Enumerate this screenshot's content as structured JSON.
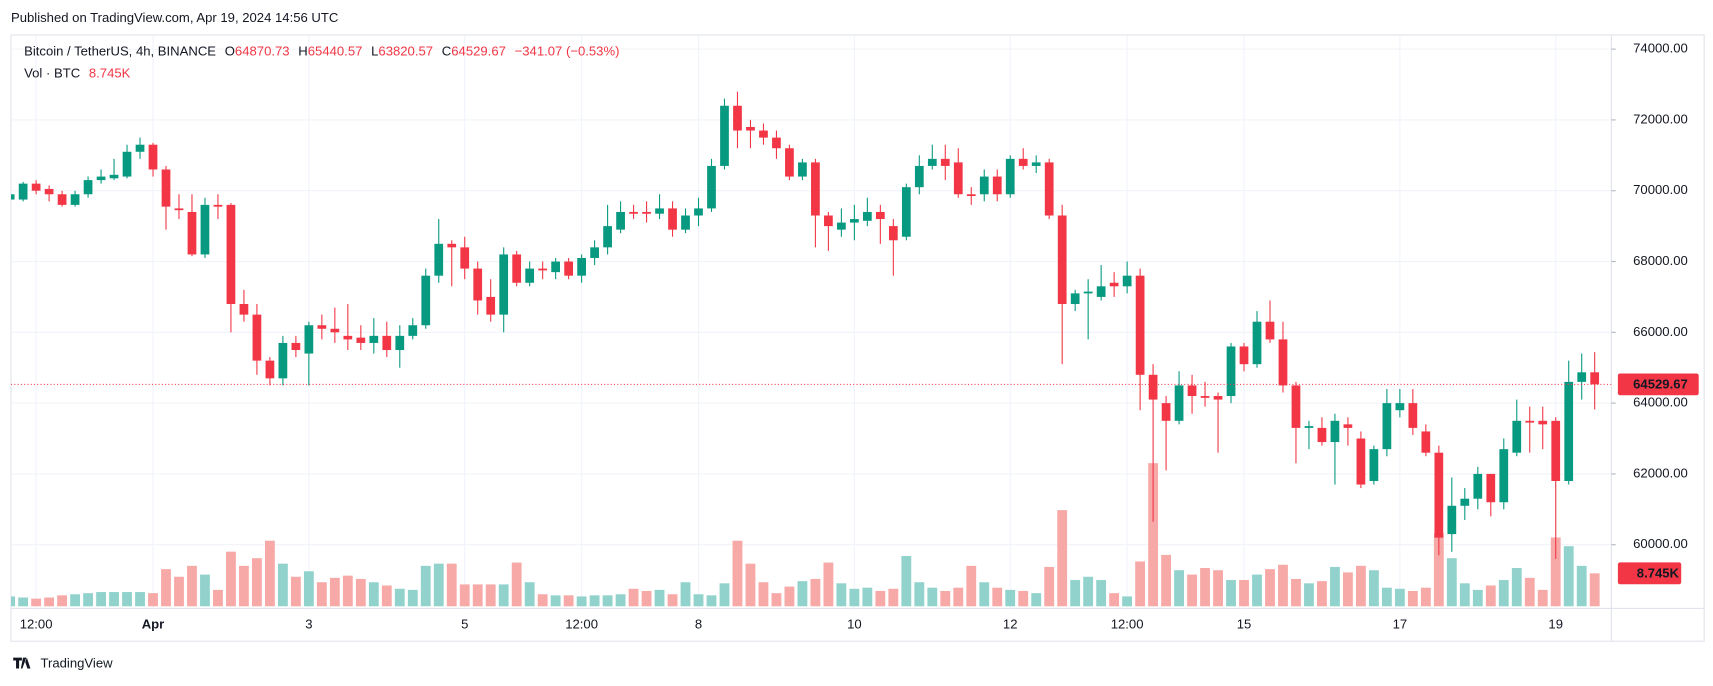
{
  "published": "Published on TradingView.com, Apr 19, 2024 14:56 UTC",
  "brand": "TradingView",
  "chart_data": {
    "type": "candlestick",
    "title": "Bitcoin / TetherUS, 4h, BINANCE",
    "ohlc_letters": [
      "O",
      "H",
      "L",
      "C"
    ],
    "change": "−341.07 (−0.53%)",
    "up_color": "#089981",
    "down_color": "#f23645",
    "volume_up_color": "#92d2cc",
    "volume_down_color": "#f7a9a7",
    "grid": true,
    "categories": [
      null,
      null,
      "12:00",
      null,
      null,
      null,
      null,
      null,
      null,
      null,
      null,
      "Apr",
      null,
      null,
      null,
      null,
      null,
      null,
      null,
      null,
      null,
      null,
      null,
      "3",
      null,
      null,
      null,
      null,
      null,
      null,
      null,
      null,
      null,
      null,
      null,
      "5",
      null,
      null,
      null,
      null,
      null,
      null,
      null,
      null,
      "12:00",
      null,
      null,
      null,
      null,
      null,
      null,
      null,
      null,
      "8",
      null,
      null,
      null,
      null,
      null,
      null,
      null,
      null,
      null,
      null,
      null,
      "10",
      null,
      null,
      null,
      null,
      null,
      null,
      null,
      null,
      null,
      null,
      null,
      "12",
      null,
      null,
      null,
      null,
      null,
      null,
      null,
      null,
      "12:00",
      null,
      null,
      null,
      null,
      null,
      null,
      null,
      null,
      "15",
      null,
      null,
      null,
      null,
      null,
      null,
      null,
      null,
      null,
      null,
      null,
      "17",
      null,
      null,
      null,
      null,
      null,
      null,
      null,
      null,
      null,
      null,
      null,
      "19",
      null,
      null,
      null
    ],
    "open": [
      69750,
      69750,
      70200,
      70050,
      69900,
      69600,
      69900,
      70300,
      70350,
      70400,
      71100,
      71300,
      70600,
      69500,
      69400,
      68200,
      69600,
      69600,
      66800,
      66500,
      65200,
      64700,
      65700,
      65400,
      66200,
      66100,
      65900,
      65850,
      65700,
      65900,
      65500,
      65900,
      66200,
      67600,
      68500,
      68400,
      67800,
      67000,
      66500,
      68200,
      67400,
      67800,
      67700,
      68000,
      67600,
      68100,
      68400,
      68900,
      69400,
      69400,
      69350,
      69500,
      68900,
      69300,
      69500,
      70700,
      72400,
      71800,
      71700,
      71500,
      71200,
      70400,
      70800,
      69300,
      68900,
      69100,
      69150,
      69400,
      69000,
      68700,
      70100,
      70700,
      70900,
      70800,
      69900,
      69900,
      70400,
      69900,
      70900,
      70700,
      70800,
      69300,
      66800,
      67100,
      67000,
      67400,
      67300,
      67600,
      64800,
      64000,
      63500,
      64500,
      64200,
      64200,
      64200,
      65600,
      65100,
      66300,
      65800,
      64500,
      63300,
      63300,
      62900,
      63400,
      63000,
      61800,
      62700,
      63800,
      64000,
      63200,
      62600,
      60300,
      61100,
      61300,
      62000,
      61200,
      62600,
      63500,
      63500,
      63500,
      61800,
      64600,
      64870.73
    ],
    "high": [
      70300,
      70250,
      70300,
      70150,
      70000,
      70000,
      70400,
      70600,
      70900,
      71300,
      71500,
      71350,
      70700,
      69900,
      69900,
      69800,
      69900,
      69650,
      67200,
      66800,
      65300,
      65900,
      65900,
      66300,
      66500,
      66700,
      66800,
      66200,
      66400,
      66300,
      66200,
      66400,
      67800,
      69200,
      68600,
      68700,
      68000,
      67500,
      68400,
      68300,
      68000,
      68000,
      68100,
      68100,
      68200,
      68600,
      69600,
      69700,
      69600,
      69700,
      69900,
      69700,
      69500,
      69800,
      70900,
      72600,
      72800,
      72000,
      71900,
      71700,
      71300,
      70900,
      70900,
      69400,
      69500,
      69600,
      69800,
      69600,
      69200,
      70200,
      71000,
      71300,
      71300,
      71200,
      70100,
      70600,
      70600,
      71000,
      71200,
      71000,
      70900,
      69600,
      67200,
      67500,
      67900,
      67700,
      68000,
      67800,
      65100,
      64200,
      64900,
      64800,
      64600,
      64300,
      65700,
      65700,
      66600,
      66900,
      66300,
      64600,
      63500,
      63600,
      63700,
      63600,
      63200,
      62800,
      64400,
      64400,
      64400,
      63400,
      62800,
      61900,
      61600,
      62200,
      62000,
      63000,
      64100,
      63900,
      63900,
      63600,
      65200,
      65400,
      65440.57
    ],
    "low": [
      69700,
      69700,
      69900,
      69700,
      69550,
      69550,
      69800,
      70200,
      70300,
      70350,
      70900,
      70400,
      68900,
      69200,
      68150,
      68100,
      69200,
      66000,
      66300,
      64800,
      64500,
      64500,
      65300,
      64500,
      65800,
      65700,
      65500,
      65500,
      65400,
      65300,
      65000,
      65800,
      66100,
      67400,
      67300,
      67500,
      66500,
      66300,
      66000,
      67300,
      67300,
      67500,
      67500,
      67500,
      67400,
      67900,
      68200,
      68800,
      69200,
      69100,
      69200,
      68700,
      68800,
      69000,
      69400,
      70600,
      71200,
      71200,
      71300,
      70900,
      70300,
      70300,
      68400,
      68300,
      68700,
      68600,
      69000,
      68500,
      67600,
      68600,
      69900,
      70600,
      70300,
      69800,
      69600,
      69700,
      69700,
      69800,
      70600,
      70500,
      69200,
      65100,
      66600,
      65800,
      66900,
      67000,
      67100,
      63800,
      60650,
      62100,
      63400,
      63700,
      63900,
      62600,
      64000,
      64900,
      65000,
      65700,
      64300,
      62300,
      62700,
      62800,
      61700,
      62800,
      61600,
      61700,
      62500,
      63600,
      63100,
      62500,
      59700,
      59800,
      60700,
      61000,
      60800,
      61000,
      62500,
      62600,
      62700,
      59600,
      61700,
      64100,
      63820.57
    ],
    "close": [
      69900,
      70200,
      70000,
      69900,
      69600,
      69900,
      70300,
      70400,
      70450,
      71100,
      71300,
      70600,
      69550,
      69450,
      68200,
      69600,
      69550,
      66800,
      66500,
      65200,
      64700,
      65700,
      65500,
      66200,
      66100,
      66000,
      65800,
      65700,
      65900,
      65500,
      65900,
      66200,
      67600,
      68500,
      68400,
      67800,
      66900,
      66500,
      68200,
      67400,
      67800,
      67750,
      68000,
      67600,
      68100,
      68400,
      69000,
      69400,
      69350,
      69350,
      69500,
      68900,
      69300,
      69500,
      70700,
      72400,
      71700,
      71700,
      71500,
      71200,
      70400,
      70800,
      69300,
      69000,
      69100,
      69200,
      69400,
      69200,
      68600,
      70100,
      70700,
      70900,
      70700,
      69900,
      69850,
      70400,
      69900,
      70900,
      70700,
      70800,
      69300,
      66800,
      67100,
      67150,
      67300,
      67300,
      67600,
      64800,
      64100,
      63500,
      64500,
      64200,
      64150,
      64100,
      65600,
      65100,
      66300,
      65800,
      64500,
      63300,
      63350,
      62900,
      63500,
      63300,
      61700,
      62700,
      64000,
      64000,
      63300,
      62600,
      60200,
      61100,
      61300,
      62000,
      61200,
      62700,
      63500,
      63450,
      63400,
      61800,
      64600,
      64870.73,
      64529.67
    ],
    "volume": {
      "name": "Vol · BTC",
      "last_label": "8.745K",
      "values": [
        2610,
        2320,
        2030,
        2320,
        2900,
        3190,
        3480,
        3770,
        3770,
        3770,
        3770,
        3480,
        9860,
        7830,
        10730,
        8410,
        4350,
        14500,
        10730,
        12760,
        17400,
        11310,
        7830,
        9280,
        6380,
        7540,
        8120,
        7250,
        6380,
        5510,
        4640,
        4350,
        10730,
        11310,
        11310,
        5800,
        5800,
        5800,
        5800,
        11600,
        6380,
        3190,
        2900,
        2900,
        2610,
        2900,
        2900,
        3190,
        4640,
        4060,
        4350,
        3190,
        6380,
        3190,
        2900,
        6090,
        17400,
        11310,
        6380,
        3480,
        5220,
        6670,
        7250,
        11600,
        6090,
        4640,
        4930,
        4060,
        4640,
        13340,
        6380,
        4930,
        4060,
        4930,
        10730,
        6380,
        4930,
        4350,
        4060,
        3480,
        10440,
        25520,
        6960,
        7830,
        6960,
        3480,
        2610,
        11890,
        37990,
        13630,
        9570,
        8410,
        10150,
        9570,
        6960,
        6960,
        8410,
        9860,
        11020,
        7250,
        6090,
        6670,
        10440,
        8990,
        10730,
        9570,
        4930,
        4640,
        4060,
        4930,
        19430,
        12760,
        6090,
        4350,
        5510,
        6960,
        10150,
        7540,
        4350,
        18270,
        15950,
        10730,
        8745
      ]
    },
    "ylim": [
      58200,
      74400
    ],
    "yticks": [
      {
        "value": 60000,
        "label": "60000.00"
      },
      {
        "value": 62000,
        "label": "62000.00"
      },
      {
        "value": 64000,
        "label": "64000.00"
      },
      {
        "value": 66000,
        "label": "66000.00"
      },
      {
        "value": 68000,
        "label": "68000.00"
      },
      {
        "value": 70000,
        "label": "70000.00"
      },
      {
        "value": 72000,
        "label": "72000.00"
      },
      {
        "value": 74000,
        "label": "74000.00"
      }
    ]
  }
}
